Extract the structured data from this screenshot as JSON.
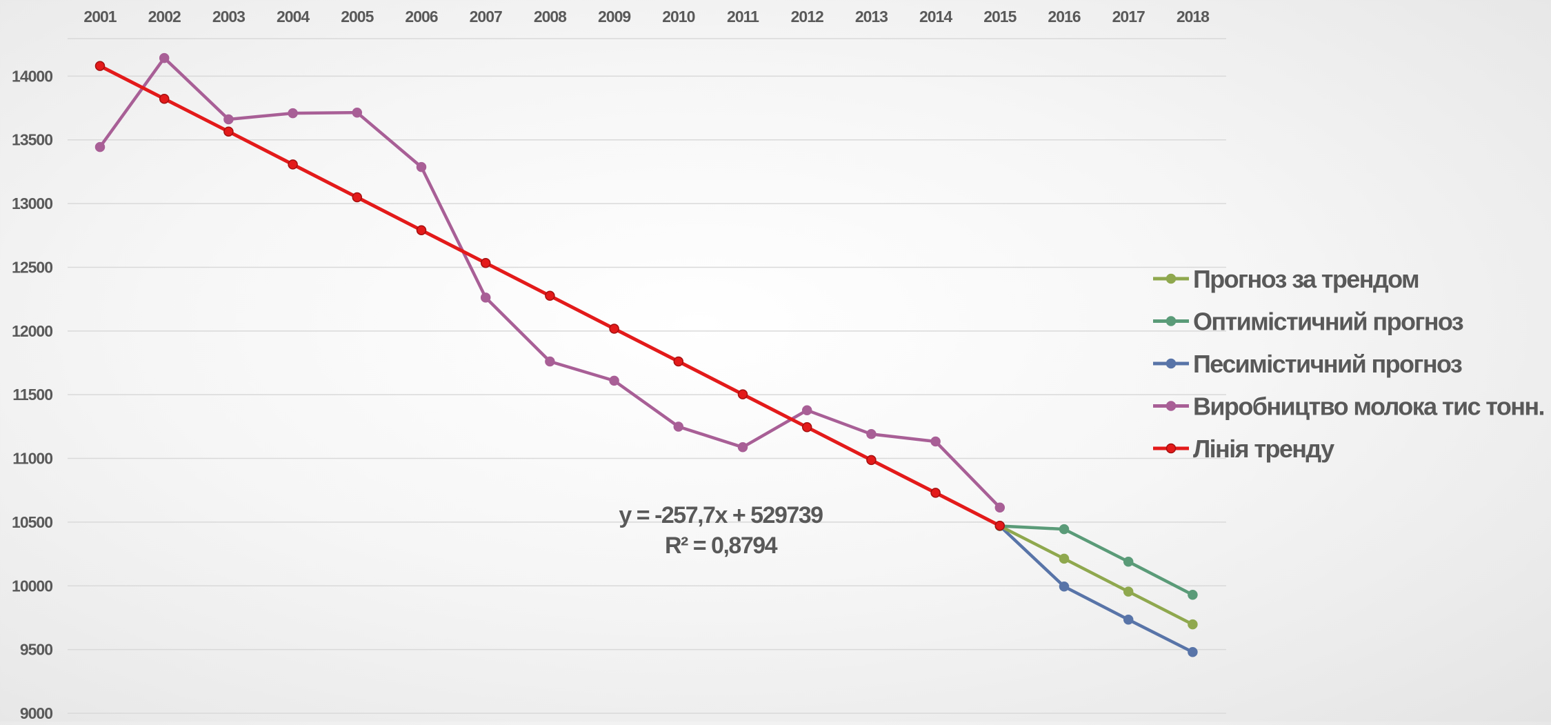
{
  "chart_data": {
    "type": "line",
    "categories": [
      "2001",
      "2002",
      "2003",
      "2004",
      "2005",
      "2006",
      "2007",
      "2008",
      "2009",
      "2010",
      "2011",
      "2012",
      "2013",
      "2014",
      "2015",
      "2016",
      "2017",
      "2018"
    ],
    "x_tick_labels": [
      "2001",
      "2002",
      "2003",
      "2004",
      "2005",
      "2006",
      "2007",
      "2008",
      "2009",
      "2010",
      "2011",
      "2012",
      "2013",
      "2014",
      "2015",
      "2016",
      "2017",
      "2018"
    ],
    "y_tick_labels": [
      "14000",
      "13500",
      "13000",
      "12500",
      "12000",
      "11500",
      "11000",
      "10500",
      "10000",
      "9500",
      "9000"
    ],
    "ylim": [
      9000,
      14500
    ],
    "x_axis_position": "top",
    "grid": true,
    "legend_position": "right",
    "series": [
      {
        "name": "Прогноз за трендом",
        "color": "#8fa84e",
        "values": [
          null,
          null,
          null,
          null,
          null,
          null,
          null,
          null,
          null,
          null,
          null,
          null,
          null,
          null,
          10470,
          10213,
          9955,
          9698
        ]
      },
      {
        "name": "Оптимістичний прогноз",
        "color": "#5a9b78",
        "values": [
          null,
          null,
          null,
          null,
          null,
          null,
          null,
          null,
          null,
          null,
          null,
          null,
          null,
          null,
          10470,
          10445,
          10190,
          9930
        ]
      },
      {
        "name": "Песимістичний прогноз",
        "color": "#5874a8",
        "values": [
          null,
          null,
          null,
          null,
          null,
          null,
          null,
          null,
          null,
          null,
          null,
          null,
          null,
          null,
          10470,
          9995,
          9735,
          9480
        ]
      },
      {
        "name": "Виробництво молока тис тонн.",
        "color": "#a85f96",
        "values": [
          13444,
          14142,
          13661,
          13709,
          13714,
          13287,
          12262,
          11761,
          11610,
          11249,
          11088,
          11378,
          11191,
          11133,
          10615,
          null,
          null,
          null
        ]
      },
      {
        "name": "Лінія тренду",
        "color": "#e31a1a",
        "values": [
          14080,
          13822,
          13565,
          13307,
          13049,
          12791,
          12534,
          12276,
          12018,
          11761,
          11503,
          11245,
          10987,
          10730,
          10472,
          null,
          null,
          null
        ]
      }
    ],
    "annotations": [
      {
        "text": "y = -257,7x + 529739"
      },
      {
        "text": "R² = 0,8794"
      }
    ]
  }
}
